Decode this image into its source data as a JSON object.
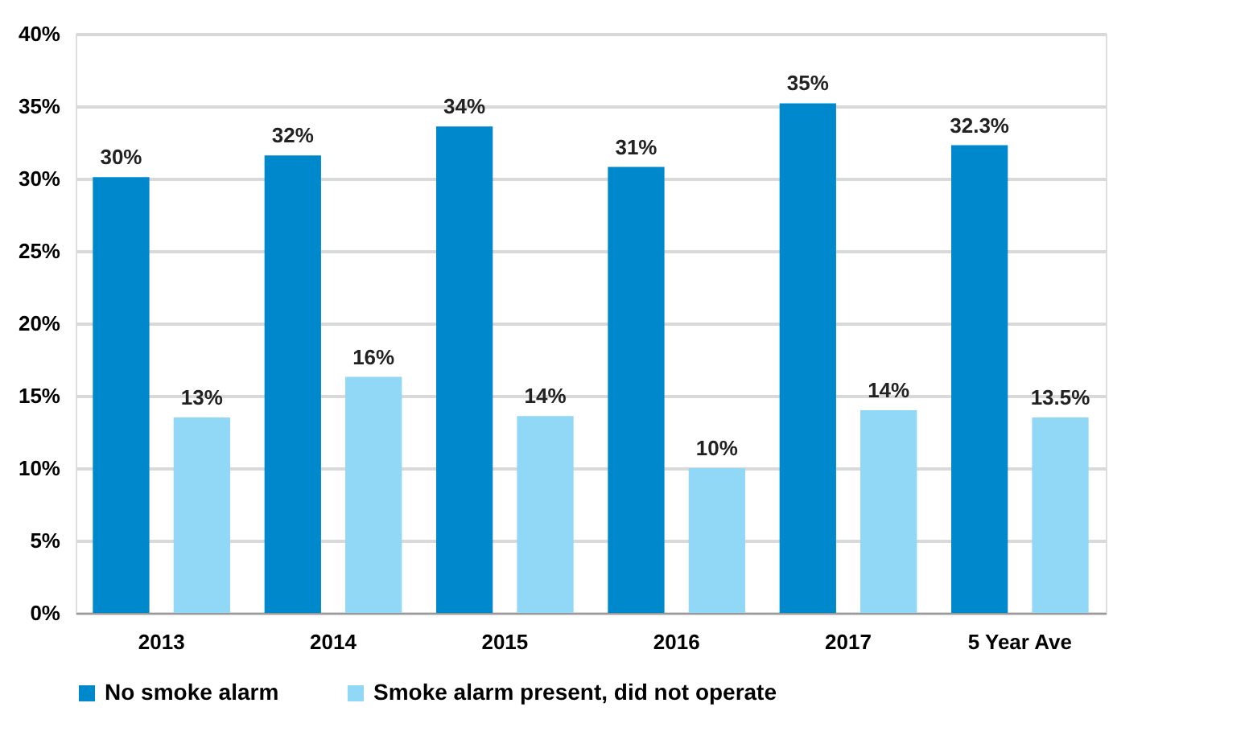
{
  "chart_data": {
    "type": "bar",
    "categories": [
      "2013",
      "2014",
      "2015",
      "2016",
      "2017",
      "5 Year Ave"
    ],
    "series": [
      {
        "name": "No smoke alarm",
        "color": "#0088cc",
        "values": [
          30.1,
          31.6,
          33.6,
          30.8,
          35.2,
          32.3
        ],
        "value_labels": [
          "30%",
          "32%",
          "34%",
          "31%",
          "35%",
          "32.3%"
        ]
      },
      {
        "name": "Smoke alarm present, did not operate",
        "color": "#90d8f5",
        "values": [
          13.5,
          16.3,
          13.6,
          10.0,
          14.0,
          13.5
        ],
        "value_labels": [
          "13%",
          "16%",
          "14%",
          "10%",
          "14%",
          "13.5%"
        ]
      }
    ],
    "ylim": [
      0,
      40
    ],
    "yticks": [
      {
        "value": 0,
        "label": "0%"
      },
      {
        "value": 5,
        "label": "5%"
      },
      {
        "value": 10,
        "label": "10%"
      },
      {
        "value": 15,
        "label": "15%"
      },
      {
        "value": 20,
        "label": "20%"
      },
      {
        "value": 25,
        "label": "25%"
      },
      {
        "value": 30,
        "label": "30%"
      },
      {
        "value": 35,
        "label": "35%"
      },
      {
        "value": 40,
        "label": "40%"
      }
    ],
    "grid": "y",
    "legend": "bottom"
  }
}
